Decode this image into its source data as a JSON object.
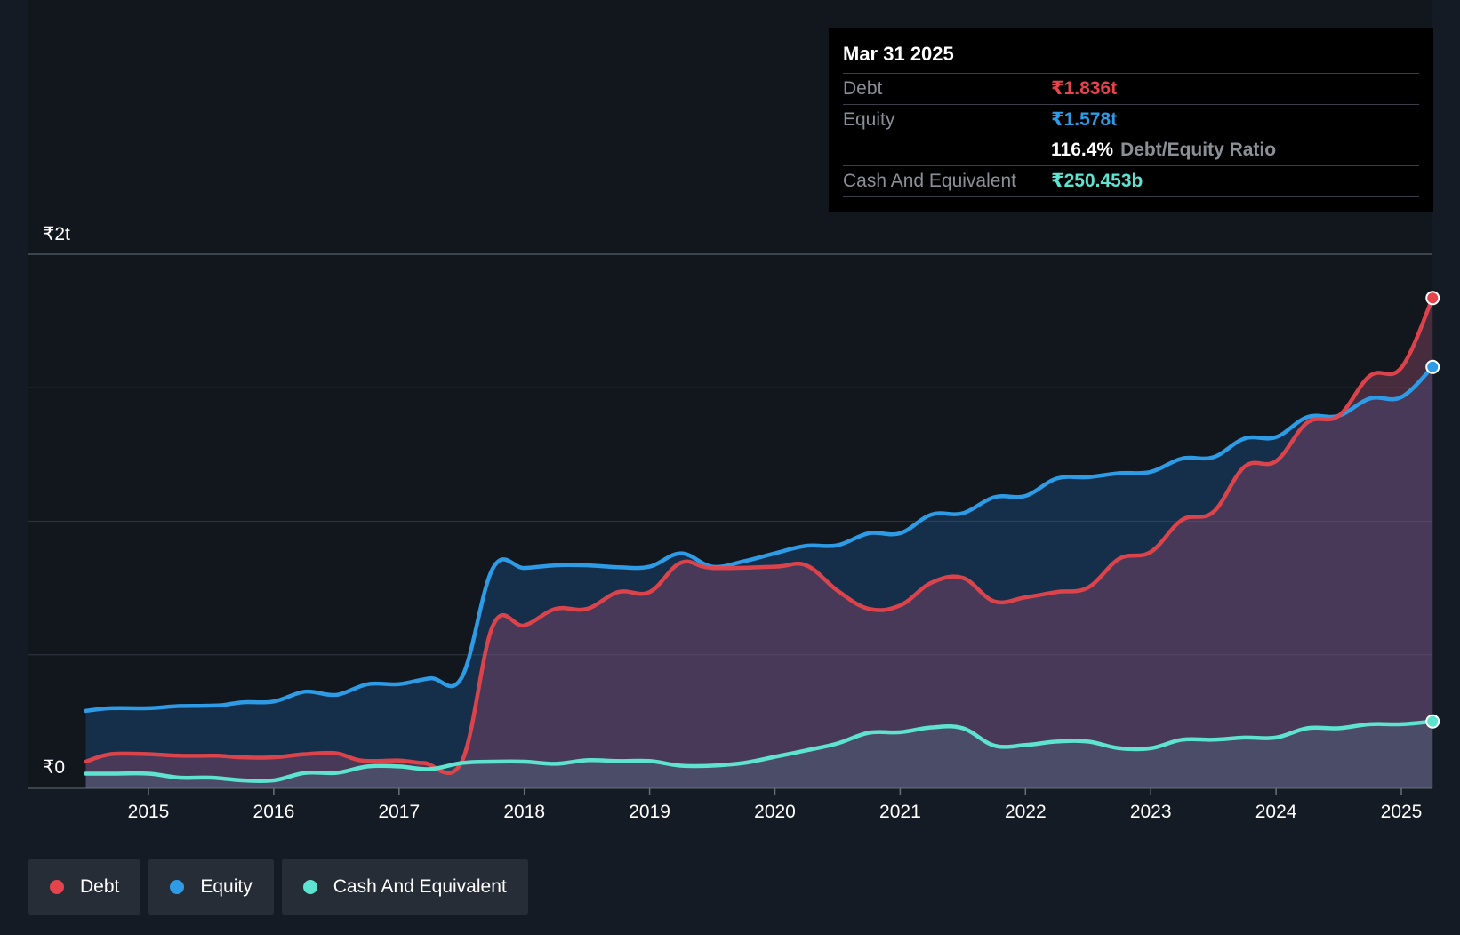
{
  "tooltip": {
    "date": "Mar 31 2025",
    "rows": [
      {
        "label": "Debt",
        "value": "₹1.836t",
        "color": "#e5444c"
      },
      {
        "label": "Equity",
        "value": "₹1.578t",
        "color": "#2e9be6"
      },
      {
        "label": "",
        "value": "116.4%",
        "suffix": "Debt/Equity Ratio"
      },
      {
        "label": "Cash And Equivalent",
        "value": "₹250.453b",
        "color": "#5de3cf"
      }
    ]
  },
  "legend": [
    {
      "label": "Debt",
      "color": "#e5444c"
    },
    {
      "label": "Equity",
      "color": "#2e9be6"
    },
    {
      "label": "Cash And Equivalent",
      "color": "#5de3cf"
    }
  ],
  "chart_data": {
    "type": "area",
    "ylim": [
      0,
      2000
    ],
    "y_unit": "billion ₹",
    "y_tick_labels": [
      "₹0",
      "₹2t"
    ],
    "gridlines": [
      0,
      500,
      1000,
      1500,
      2000
    ],
    "x_tick_labels": [
      "2015",
      "2016",
      "2017",
      "2018",
      "2019",
      "2020",
      "2021",
      "2022",
      "2023",
      "2024",
      "2025"
    ],
    "x_tick_values": [
      2015,
      2016,
      2017,
      2018,
      2019,
      2020,
      2021,
      2022,
      2023,
      2024,
      2025
    ],
    "xlim": [
      2014.0,
      2025.25
    ],
    "series": [
      {
        "name": "Debt",
        "color": "#e5444c",
        "points": [
          [
            2014.5,
            100
          ],
          [
            2014.7,
            128
          ],
          [
            2015.0,
            128
          ],
          [
            2015.25,
            122
          ],
          [
            2015.55,
            122
          ],
          [
            2015.75,
            116
          ],
          [
            2016.0,
            116
          ],
          [
            2016.25,
            128
          ],
          [
            2016.5,
            131
          ],
          [
            2016.7,
            104
          ],
          [
            2017.0,
            104
          ],
          [
            2017.2,
            95
          ],
          [
            2017.5,
            100
          ],
          [
            2017.75,
            610
          ],
          [
            2018.0,
            610
          ],
          [
            2018.25,
            672
          ],
          [
            2018.5,
            672
          ],
          [
            2018.75,
            735
          ],
          [
            2019.0,
            735
          ],
          [
            2019.25,
            845
          ],
          [
            2019.5,
            825
          ],
          [
            2020.0,
            830
          ],
          [
            2020.25,
            835
          ],
          [
            2020.5,
            740
          ],
          [
            2020.75,
            672
          ],
          [
            2021.0,
            685
          ],
          [
            2021.25,
            770
          ],
          [
            2021.5,
            788
          ],
          [
            2021.75,
            700
          ],
          [
            2022.0,
            715
          ],
          [
            2022.25,
            735
          ],
          [
            2022.5,
            752
          ],
          [
            2022.75,
            860
          ],
          [
            2023.0,
            885
          ],
          [
            2023.25,
            1005
          ],
          [
            2023.5,
            1035
          ],
          [
            2023.75,
            1205
          ],
          [
            2024.0,
            1225
          ],
          [
            2024.25,
            1370
          ],
          [
            2024.5,
            1395
          ],
          [
            2024.75,
            1545
          ],
          [
            2025.0,
            1575
          ],
          [
            2025.25,
            1836
          ]
        ]
      },
      {
        "name": "Equity",
        "color": "#2e9be6",
        "points": [
          [
            2014.5,
            290
          ],
          [
            2014.7,
            300
          ],
          [
            2015.0,
            300
          ],
          [
            2015.25,
            308
          ],
          [
            2015.55,
            310
          ],
          [
            2015.75,
            322
          ],
          [
            2016.0,
            325
          ],
          [
            2016.25,
            362
          ],
          [
            2016.5,
            350
          ],
          [
            2016.75,
            390
          ],
          [
            2017.0,
            390
          ],
          [
            2017.25,
            412
          ],
          [
            2017.5,
            415
          ],
          [
            2017.75,
            825
          ],
          [
            2018.0,
            825
          ],
          [
            2018.25,
            835
          ],
          [
            2018.5,
            835
          ],
          [
            2018.75,
            828
          ],
          [
            2019.0,
            830
          ],
          [
            2019.25,
            880
          ],
          [
            2019.5,
            830
          ],
          [
            2019.75,
            850
          ],
          [
            2020.0,
            880
          ],
          [
            2020.25,
            908
          ],
          [
            2020.5,
            910
          ],
          [
            2020.75,
            955
          ],
          [
            2021.0,
            955
          ],
          [
            2021.25,
            1025
          ],
          [
            2021.5,
            1030
          ],
          [
            2021.75,
            1090
          ],
          [
            2022.0,
            1095
          ],
          [
            2022.25,
            1160
          ],
          [
            2022.5,
            1165
          ],
          [
            2022.75,
            1180
          ],
          [
            2023.0,
            1185
          ],
          [
            2023.25,
            1235
          ],
          [
            2023.5,
            1240
          ],
          [
            2023.75,
            1310
          ],
          [
            2024.0,
            1315
          ],
          [
            2024.25,
            1390
          ],
          [
            2024.5,
            1395
          ],
          [
            2024.75,
            1460
          ],
          [
            2025.0,
            1465
          ],
          [
            2025.25,
            1578
          ]
        ]
      },
      {
        "name": "Cash And Equivalent",
        "color": "#5de3cf",
        "points": [
          [
            2014.5,
            55
          ],
          [
            2014.7,
            55
          ],
          [
            2015.0,
            55
          ],
          [
            2015.25,
            40
          ],
          [
            2015.5,
            40
          ],
          [
            2015.75,
            30
          ],
          [
            2016.0,
            30
          ],
          [
            2016.25,
            58
          ],
          [
            2016.5,
            58
          ],
          [
            2016.75,
            82
          ],
          [
            2017.0,
            82
          ],
          [
            2017.25,
            72
          ],
          [
            2017.5,
            95
          ],
          [
            2017.75,
            100
          ],
          [
            2018.0,
            100
          ],
          [
            2018.25,
            92
          ],
          [
            2018.5,
            105
          ],
          [
            2018.75,
            102
          ],
          [
            2019.0,
            102
          ],
          [
            2019.25,
            85
          ],
          [
            2019.5,
            85
          ],
          [
            2019.75,
            95
          ],
          [
            2020.0,
            118
          ],
          [
            2020.25,
            142
          ],
          [
            2020.5,
            168
          ],
          [
            2020.75,
            208
          ],
          [
            2021.0,
            210
          ],
          [
            2021.25,
            228
          ],
          [
            2021.5,
            225
          ],
          [
            2021.75,
            160
          ],
          [
            2022.0,
            162
          ],
          [
            2022.25,
            175
          ],
          [
            2022.5,
            175
          ],
          [
            2022.75,
            150
          ],
          [
            2023.0,
            150
          ],
          [
            2023.25,
            182
          ],
          [
            2023.5,
            182
          ],
          [
            2023.75,
            190
          ],
          [
            2024.0,
            190
          ],
          [
            2024.25,
            225
          ],
          [
            2024.5,
            225
          ],
          [
            2024.75,
            240
          ],
          [
            2025.0,
            240
          ],
          [
            2025.25,
            250.453
          ]
        ]
      }
    ]
  }
}
